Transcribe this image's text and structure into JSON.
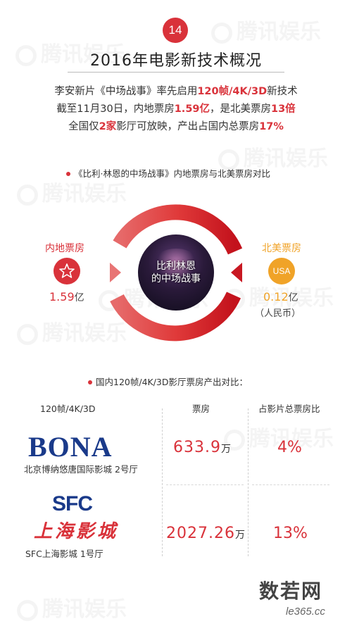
{
  "badge": "14",
  "title": "2016年电影新技术概况",
  "intro": {
    "line1": {
      "pre": "李安新片《中场战事》率先启用",
      "hl": "120帧/4K/3D",
      "post": "新技术"
    },
    "line2": {
      "pre": "截至11月30日，内地票房",
      "hl1": "1.59亿",
      "mid": "，是北美票房",
      "hl2": "13倍"
    },
    "line3": {
      "pre": "全国仅",
      "hl1": "2家",
      "mid": "影厅可放映，产出占国内总票房",
      "hl2": "17%"
    }
  },
  "section1": {
    "heading": "《比利·林恩的中场战事》内地票房与北美票房对比",
    "poster_title_line1": "比利林恩",
    "poster_title_line2": "的中场战事",
    "domestic": {
      "label": "内地票房",
      "value": "1.59",
      "unit": "亿",
      "icon": "star-icon"
    },
    "na": {
      "label": "北美票房",
      "icon_text": "USA",
      "value": "0.12",
      "unit": "亿",
      "note": "（人民币）"
    }
  },
  "section2": {
    "heading": "国内120帧/4K/3D影厅票房产出对比：",
    "columns": [
      "120帧/4K/3D",
      "票房",
      "占影片总票房比"
    ],
    "rows": [
      {
        "logo": "BONA",
        "name": "北京博纳悠唐国际影城 2号厅",
        "box": "633.9",
        "box_unit": "万",
        "pct": "4%"
      },
      {
        "logo": "SFC",
        "logo2": "上海影城",
        "name": "SFC上海影城 1号厅",
        "box": "2027.26",
        "box_unit": "万",
        "pct": "13%"
      }
    ]
  },
  "watermark": "腾讯娱乐",
  "footer": {
    "logo": "数若网",
    "url": "le365.cc"
  },
  "colors": {
    "accent": "#d9323a",
    "orange": "#f0a328",
    "navy": "#1a3a8a"
  }
}
